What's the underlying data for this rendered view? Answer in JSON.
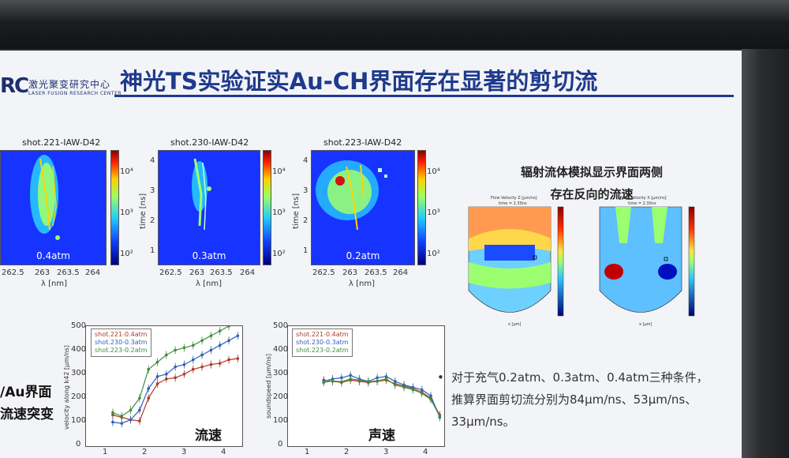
{
  "header": {
    "logo_text": "RC",
    "org_cn": "激光聚变研究中心",
    "org_en": "LASER FUSION RESEARCH CENTER",
    "title": "神光TS实验证实Au-CH界面存在显著的剪切流"
  },
  "heatmaps": [
    {
      "title": "shot.221-IAW-D42",
      "pressure": "0.4atm"
    },
    {
      "title": "shot.230-IAW-D42",
      "pressure": "0.3atm"
    },
    {
      "title": "shot.223-IAW-D42",
      "pressure": "0.2atm"
    }
  ],
  "axes": {
    "lambda_label": "λ [nm]",
    "lambda_ticks": [
      "262.5",
      "263",
      "263.5",
      "264"
    ],
    "time_label": "time [ns]",
    "time_ticks": [
      "4",
      "3",
      "2",
      "1"
    ],
    "colorbar_ticks": [
      "10⁴",
      "10³",
      "10²"
    ]
  },
  "simulation": {
    "caption_line1": "辐射流体模拟显示界面两侧",
    "caption_line2": "存在反向的流速",
    "panel_title_1": "Flow Velocity Z [μm/ns]",
    "panel_title_2": "Flow Velocity X [μm/ns]",
    "panel_time": "time = 2.30ns",
    "y_ticks": [
      "3000",
      "2500",
      "2000",
      "1500",
      "1000",
      "500",
      "0"
    ],
    "x_ticks": [
      "-1500",
      "-1000",
      "-500",
      "0",
      "500",
      "1000",
      "1500"
    ],
    "cbar_ticks": [
      "500",
      "400",
      "300",
      "200",
      "100",
      "0",
      "-100",
      "-200",
      "-300",
      "-400",
      "-500"
    ],
    "y_axis": "z [μm]",
    "x_axis": "x [μm]"
  },
  "left_text": {
    "line1": "/Au界面",
    "line2": "流速突变"
  },
  "line_plots": [
    {
      "label": "流速",
      "ylabel": "velocity along k42 [μm/ns]",
      "yticks": [
        "500",
        "400",
        "300",
        "200",
        "100",
        "0"
      ],
      "xticks": [
        "1",
        "2",
        "3",
        "4"
      ]
    },
    {
      "label": "声速",
      "ylabel": "soundspeed [μm/ns]",
      "yticks": [
        "500",
        "400",
        "300",
        "200",
        "100",
        "0"
      ],
      "xticks": [
        "1",
        "2",
        "3",
        "4"
      ]
    }
  ],
  "legend": [
    "shot.221-0.4atm",
    "shot.230-0.3atm",
    "shot.223-0.2atm"
  ],
  "bullet": {
    "text": "对于充气0.2atm、0.3atm、0.4atm三种条件，推算界面剪切流分别为84μm/ns、53μm/ns、33μm/ns。"
  },
  "chart_data": [
    {
      "type": "line",
      "label": "流速",
      "ylabel": "velocity along k42 [μm/ns]",
      "ylim": [
        0,
        500
      ],
      "xlim": [
        0.8,
        4.3
      ],
      "series": [
        {
          "name": "shot.221-0.4atm",
          "color": "#b0382a",
          "x": [
            1.4,
            1.6,
            1.8,
            2.0,
            2.2,
            2.4,
            2.6,
            2.8,
            3.0,
            3.2,
            3.4,
            3.6,
            3.8,
            4.0,
            4.2
          ],
          "y": [
            130,
            120,
            110,
            105,
            200,
            260,
            280,
            285,
            300,
            320,
            330,
            340,
            345,
            360,
            365
          ]
        },
        {
          "name": "shot.230-0.3atm",
          "color": "#2f5fb8",
          "x": [
            1.4,
            1.6,
            1.8,
            2.0,
            2.2,
            2.4,
            2.6,
            2.8,
            3.0,
            3.2,
            3.4,
            3.6,
            3.8,
            4.0,
            4.2
          ],
          "y": [
            100,
            95,
            110,
            150,
            240,
            290,
            300,
            330,
            340,
            360,
            380,
            400,
            420,
            440,
            460
          ]
        },
        {
          "name": "shot.223-0.2atm",
          "color": "#3f8f3a",
          "x": [
            1.4,
            1.6,
            1.8,
            2.0,
            2.2,
            2.4,
            2.6,
            2.8,
            3.0,
            3.2,
            3.4,
            3.6,
            3.8,
            4.0
          ],
          "y": [
            140,
            125,
            150,
            200,
            320,
            350,
            380,
            400,
            410,
            420,
            440,
            460,
            480,
            500
          ]
        }
      ]
    },
    {
      "type": "line",
      "label": "声速",
      "ylabel": "soundspeed [μm/ns]",
      "ylim": [
        0,
        500
      ],
      "xlim": [
        0.8,
        4.3
      ],
      "series": [
        {
          "name": "shot.221-0.4atm",
          "color": "#b0382a",
          "x": [
            1.6,
            1.8,
            2.0,
            2.2,
            2.4,
            2.6,
            2.8,
            3.0,
            3.2,
            3.4,
            3.6,
            3.8,
            4.0,
            4.2
          ],
          "y": [
            275,
            270,
            265,
            275,
            270,
            265,
            270,
            275,
            260,
            250,
            240,
            225,
            200,
            130
          ]
        },
        {
          "name": "shot.230-0.3atm",
          "color": "#2f5fb8",
          "x": [
            1.6,
            1.8,
            2.0,
            2.2,
            2.4,
            2.6,
            2.8,
            3.0,
            3.2,
            3.4,
            3.6,
            3.8,
            4.0,
            4.2
          ],
          "y": [
            270,
            280,
            285,
            295,
            280,
            270,
            285,
            290,
            270,
            255,
            245,
            235,
            210,
            120
          ]
        },
        {
          "name": "shot.223-0.2atm",
          "color": "#3f8f3a",
          "x": [
            1.6,
            1.8,
            2.0,
            2.2,
            2.4,
            2.6,
            2.8,
            3.0,
            3.2,
            3.4,
            3.6,
            3.8,
            4.0,
            4.2
          ],
          "y": [
            265,
            272,
            268,
            280,
            275,
            268,
            272,
            280,
            255,
            245,
            235,
            220,
            195,
            125
          ]
        }
      ]
    }
  ]
}
